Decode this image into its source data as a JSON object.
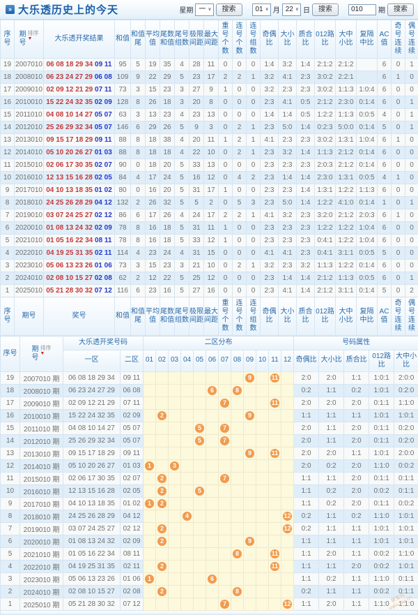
{
  "page": {
    "title": "大乐透历史上的今天",
    "title_icon": "»"
  },
  "controls": {
    "week_label": "星期",
    "week_value": "一",
    "search_label": "搜索",
    "month_value": "01",
    "month_label": "月",
    "day_value": "22",
    "day_label": "日",
    "issue_value": "010",
    "issue_label": "期"
  },
  "sort_label": "排序",
  "sort_arrow": "▼",
  "table1": {
    "columns": [
      "序号",
      "期\n号",
      "大乐透开奖结果",
      "和值",
      "和值\n尾",
      "平均\n值",
      "尾数\n和值",
      "尾号\n组数",
      "极限\n间距",
      "最大\n间距",
      "重号\n个数",
      "连号\n个数",
      "连号\n组数",
      "奇偶\n比",
      "大小\n比",
      "质合\n比",
      "012路\n比",
      "大中\n小比",
      "复隔\n中比",
      "AC值",
      "奇号\n连续",
      "偶号\n连续"
    ],
    "footer_columns": [
      "序号",
      "期号",
      "奖号",
      "和值",
      "和值\n尾",
      "平均\n值",
      "尾数\n和值",
      "尾号\n组数",
      "极限\n间距",
      "最大\n间距",
      "重号\n个数",
      "连号\n个数",
      "连号\n组数",
      "奇偶\n比",
      "大小\n比",
      "质合\n比",
      "012路\n比",
      "大中\n小比",
      "复隔\n中比",
      "AC值",
      "奇号\n连续",
      "偶号\n连续"
    ],
    "rows": [
      {
        "seq": "19",
        "period": "2007010",
        "front": "06 08 18 29 34",
        "back": "09 11",
        "values": [
          "95",
          "5",
          "19",
          "35",
          "4",
          "28",
          "11",
          "0",
          "0",
          "0",
          "1:4",
          "3:2",
          "1:4",
          "2:1:2",
          "2:1:2",
          "",
          "6",
          "0",
          "1"
        ]
      },
      {
        "seq": "18",
        "period": "2008010",
        "front": "06 23 24 27 29",
        "back": "06 08",
        "values": [
          "109",
          "9",
          "22",
          "29",
          "5",
          "23",
          "17",
          "2",
          "2",
          "1",
          "3:2",
          "4:1",
          "2:3",
          "3:0:2",
          "2:2:1",
          "",
          "6",
          "1",
          "0"
        ]
      },
      {
        "seq": "17",
        "period": "2009010",
        "front": "02 09 12 21 29",
        "back": "07 11",
        "values": [
          "73",
          "3",
          "15",
          "23",
          "3",
          "27",
          "9",
          "1",
          "0",
          "0",
          "3:2",
          "2:3",
          "2:3",
          "3:0:2",
          "1:1:3",
          "1:0:4",
          "6",
          "0",
          "0"
        ]
      },
      {
        "seq": "16",
        "period": "2010010",
        "front": "15 22 24 32 35",
        "back": "02 09",
        "values": [
          "128",
          "8",
          "26",
          "18",
          "3",
          "20",
          "8",
          "0",
          "0",
          "0",
          "2:3",
          "4:1",
          "0:5",
          "2:1:2",
          "2:3:0",
          "0:1:4",
          "6",
          "0",
          "1"
        ]
      },
      {
        "seq": "15",
        "period": "2011010",
        "front": "04 08 10 14 27",
        "back": "05 07",
        "values": [
          "63",
          "3",
          "13",
          "23",
          "4",
          "23",
          "13",
          "0",
          "0",
          "0",
          "1:4",
          "1:4",
          "0:5",
          "1:2:2",
          "1:1:3",
          "0:0:5",
          "4",
          "0",
          "1"
        ]
      },
      {
        "seq": "14",
        "period": "2012010",
        "front": "25 26 29 32 34",
        "back": "05 07",
        "values": [
          "146",
          "6",
          "29",
          "26",
          "5",
          "9",
          "3",
          "0",
          "2",
          "1",
          "2:3",
          "5:0",
          "1:4",
          "0:2:3",
          "5:0:0",
          "0:1:4",
          "5",
          "0",
          "1"
        ]
      },
      {
        "seq": "13",
        "period": "2013010",
        "front": "09 15 17 18 29",
        "back": "09 11",
        "values": [
          "88",
          "8",
          "18",
          "38",
          "4",
          "20",
          "11",
          "1",
          "2",
          "1",
          "4:1",
          "2:3",
          "2:3",
          "3:0:2",
          "1:3:1",
          "1:0:4",
          "6",
          "1",
          "0"
        ]
      },
      {
        "seq": "12",
        "period": "2014010",
        "front": "05 10 20 26 27",
        "back": "01 03",
        "values": [
          "88",
          "8",
          "18",
          "18",
          "4",
          "22",
          "10",
          "0",
          "2",
          "1",
          "2:3",
          "3:2",
          "1:4",
          "1:1:3",
          "2:1:2",
          "0:1:4",
          "6",
          "0",
          "0"
        ]
      },
      {
        "seq": "11",
        "period": "2015010",
        "front": "02 06 17 30 35",
        "back": "02 07",
        "values": [
          "90",
          "0",
          "18",
          "20",
          "5",
          "33",
          "13",
          "0",
          "0",
          "0",
          "2:3",
          "2:3",
          "2:3",
          "2:0:3",
          "2:1:2",
          "0:1:4",
          "6",
          "0",
          "0"
        ]
      },
      {
        "seq": "10",
        "period": "2016010",
        "front": "12 13 15 16 28",
        "back": "02 05",
        "values": [
          "84",
          "4",
          "17",
          "24",
          "5",
          "16",
          "12",
          "0",
          "4",
          "2",
          "2:3",
          "1:4",
          "1:4",
          "2:3:0",
          "1:3:1",
          "0:0:5",
          "4",
          "1",
          "0"
        ]
      },
      {
        "seq": "9",
        "period": "2017010",
        "front": "04 10 13 18 35",
        "back": "01 02",
        "values": [
          "80",
          "0",
          "16",
          "20",
          "5",
          "31",
          "17",
          "1",
          "0",
          "0",
          "2:3",
          "2:3",
          "1:4",
          "1:3:1",
          "1:2:2",
          "1:1:3",
          "6",
          "0",
          "0"
        ]
      },
      {
        "seq": "8",
        "period": "2018010",
        "front": "24 25 26 28 29",
        "back": "04 12",
        "values": [
          "132",
          "2",
          "26",
          "32",
          "5",
          "5",
          "2",
          "0",
          "5",
          "3",
          "2:3",
          "5:0",
          "1:4",
          "1:2:2",
          "4:1:0",
          "0:1:4",
          "1",
          "0",
          "1"
        ]
      },
      {
        "seq": "7",
        "period": "2019010",
        "front": "03 07 24 25 27",
        "back": "02 12",
        "values": [
          "86",
          "6",
          "17",
          "26",
          "4",
          "24",
          "17",
          "2",
          "2",
          "1",
          "4:1",
          "3:2",
          "2:3",
          "3:2:0",
          "2:1:2",
          "2:0:3",
          "6",
          "1",
          "0"
        ]
      },
      {
        "seq": "6",
        "period": "2020010",
        "front": "01 08 13 24 32",
        "back": "02 09",
        "values": [
          "78",
          "8",
          "16",
          "18",
          "5",
          "31",
          "11",
          "1",
          "0",
          "0",
          "2:3",
          "2:3",
          "2:3",
          "1:2:2",
          "1:2:2",
          "1:0:4",
          "6",
          "0",
          "0"
        ]
      },
      {
        "seq": "5",
        "period": "2021010",
        "front": "01 05 16 22 34",
        "back": "08 11",
        "values": [
          "78",
          "8",
          "16",
          "18",
          "5",
          "33",
          "12",
          "1",
          "0",
          "0",
          "2:3",
          "2:3",
          "2:3",
          "0:4:1",
          "1:2:2",
          "1:0:4",
          "6",
          "0",
          "0"
        ]
      },
      {
        "seq": "4",
        "period": "2022010",
        "front": "04 19 25 31 35",
        "back": "02 11",
        "values": [
          "114",
          "4",
          "23",
          "24",
          "4",
          "31",
          "15",
          "0",
          "0",
          "0",
          "4:1",
          "4:1",
          "2:3",
          "0:4:1",
          "3:1:1",
          "0:0:5",
          "5",
          "0",
          "0"
        ]
      },
      {
        "seq": "3",
        "period": "2023010",
        "front": "05 06 13 23 26",
        "back": "01 06",
        "values": [
          "73",
          "3",
          "15",
          "23",
          "3",
          "21",
          "10",
          "0",
          "2",
          "1",
          "3:2",
          "2:3",
          "3:2",
          "1:1:3",
          "1:2:2",
          "0:1:4",
          "6",
          "0",
          "0"
        ]
      },
      {
        "seq": "2",
        "period": "2024010",
        "front": "02 08 10 15 27",
        "back": "02 08",
        "values": [
          "62",
          "2",
          "12",
          "22",
          "5",
          "25",
          "12",
          "0",
          "0",
          "0",
          "2:3",
          "1:4",
          "1:4",
          "2:1:2",
          "1:1:3",
          "0:0:5",
          "6",
          "0",
          "1"
        ]
      },
      {
        "seq": "1",
        "period": "2025010",
        "front": "05 21 28 30 32",
        "back": "07 12",
        "values": [
          "116",
          "6",
          "23",
          "16",
          "5",
          "27",
          "16",
          "0",
          "0",
          "0",
          "2:3",
          "4:1",
          "1:4",
          "2:1:2",
          "3:1:1",
          "0:1:4",
          "5",
          "0",
          "2"
        ]
      }
    ]
  },
  "table2": {
    "group_headers": {
      "seq": "序号",
      "period": "期\n号",
      "numbers": "大乐透开奖号码",
      "distribution": "二区分布",
      "attributes": "号码属性"
    },
    "sub_headers": {
      "zone1": "一区",
      "zone2": "二区",
      "cells": [
        "01",
        "02",
        "03",
        "04",
        "05",
        "06",
        "07",
        "08",
        "09",
        "10",
        "11",
        "12"
      ],
      "ratios": [
        "奇偶比",
        "大小比",
        "质合比",
        "012路比",
        "大中小比"
      ]
    },
    "rows": [
      {
        "seq": "19",
        "period": "2007010 期",
        "zone1": "06 08 18 29 34",
        "zone2": "09 11",
        "balls": [
          9,
          11
        ],
        "ratios": [
          "2:0",
          "2:0",
          "1:1",
          "1:0:1",
          "2:0:0"
        ]
      },
      {
        "seq": "18",
        "period": "2008010 期",
        "zone1": "06 23 24 27 29",
        "zone2": "06 08",
        "balls": [
          6,
          8
        ],
        "ratios": [
          "0:2",
          "1:1",
          "0:2",
          "1:0:1",
          "0:2:0"
        ]
      },
      {
        "seq": "17",
        "period": "2009010 期",
        "zone1": "02 09 12 21 29",
        "zone2": "07 11",
        "balls": [
          7,
          11
        ],
        "ratios": [
          "2:0",
          "2:0",
          "2:0",
          "0:1:1",
          "1:1:0"
        ]
      },
      {
        "seq": "16",
        "period": "2010010 期",
        "zone1": "15 22 24 32 35",
        "zone2": "02 09",
        "balls": [
          2,
          9
        ],
        "ratios": [
          "1:1",
          "1:1",
          "1:1",
          "1:0:1",
          "1:0:1"
        ]
      },
      {
        "seq": "15",
        "period": "2011010 期",
        "zone1": "04 08 10 14 27",
        "zone2": "05 07",
        "balls": [
          5,
          7
        ],
        "ratios": [
          "2:0",
          "1:1",
          "2:0",
          "0:1:1",
          "0:2:0"
        ]
      },
      {
        "seq": "14",
        "period": "2012010 期",
        "zone1": "25 26 29 32 34",
        "zone2": "05 07",
        "balls": [
          5,
          7
        ],
        "ratios": [
          "2:0",
          "1:1",
          "2:0",
          "0:1:1",
          "0:2:0"
        ]
      },
      {
        "seq": "13",
        "period": "2013010 期",
        "zone1": "09 15 17 18 29",
        "zone2": "09 11",
        "balls": [
          9,
          11
        ],
        "ratios": [
          "2:0",
          "2:0",
          "1:1",
          "1:0:1",
          "2:0:0"
        ]
      },
      {
        "seq": "12",
        "period": "2014010 期",
        "zone1": "05 10 20 26 27",
        "zone2": "01 03",
        "balls": [
          1,
          3
        ],
        "ratios": [
          "2:0",
          "0:2",
          "2:0",
          "1:1:0",
          "0:0:2"
        ]
      },
      {
        "seq": "11",
        "period": "2015010 期",
        "zone1": "02 06 17 30 35",
        "zone2": "02 07",
        "balls": [
          2,
          7
        ],
        "ratios": [
          "1:1",
          "1:1",
          "2:0",
          "0:1:1",
          "0:1:1"
        ]
      },
      {
        "seq": "10",
        "period": "2016010 期",
        "zone1": "12 13 15 16 28",
        "zone2": "02 05",
        "balls": [
          2,
          5
        ],
        "ratios": [
          "1:1",
          "0:2",
          "2:0",
          "0:0:2",
          "0:1:1"
        ]
      },
      {
        "seq": "9",
        "period": "2017010 期",
        "zone1": "04 10 13 18 35",
        "zone2": "01 02",
        "balls": [
          1,
          2
        ],
        "ratios": [
          "1:1",
          "0:2",
          "2:0",
          "0:1:1",
          "0:0:2"
        ]
      },
      {
        "seq": "8",
        "period": "2018010 期",
        "zone1": "24 25 26 28 29",
        "zone2": "04 12",
        "balls": [
          4,
          12
        ],
        "ratios": [
          "0:2",
          "1:1",
          "0:2",
          "1:1:0",
          "1:0:1"
        ]
      },
      {
        "seq": "7",
        "period": "2019010 期",
        "zone1": "03 07 24 25 27",
        "zone2": "02 12",
        "balls": [
          2,
          12
        ],
        "ratios": [
          "0:2",
          "1:1",
          "1:1",
          "1:0:1",
          "1:0:1"
        ]
      },
      {
        "seq": "6",
        "period": "2020010 期",
        "zone1": "01 08 13 24 32",
        "zone2": "02 09",
        "balls": [
          2,
          9
        ],
        "ratios": [
          "1:1",
          "1:1",
          "1:1",
          "1:0:1",
          "1:0:1"
        ]
      },
      {
        "seq": "5",
        "period": "2021010 期",
        "zone1": "01 05 16 22 34",
        "zone2": "08 11",
        "balls": [
          8,
          11
        ],
        "ratios": [
          "1:1",
          "2:0",
          "1:1",
          "0:0:2",
          "1:1:0"
        ]
      },
      {
        "seq": "4",
        "period": "2022010 期",
        "zone1": "04 19 25 31 35",
        "zone2": "02 11",
        "balls": [
          2,
          11
        ],
        "ratios": [
          "1:1",
          "1:1",
          "2:0",
          "0:0:2",
          "1:0:1"
        ]
      },
      {
        "seq": "3",
        "period": "2023010 期",
        "zone1": "05 06 13 23 26",
        "zone2": "01 06",
        "balls": [
          1,
          6
        ],
        "ratios": [
          "1:1",
          "0:2",
          "1:1",
          "1:1:0",
          "0:1:1"
        ]
      },
      {
        "seq": "2",
        "period": "2024010 期",
        "zone1": "02 08 10 15 27",
        "zone2": "02 08",
        "balls": [
          2,
          8
        ],
        "ratios": [
          "0:2",
          "1:1",
          "1:1",
          "0:0:2",
          "0:1:1"
        ]
      },
      {
        "seq": "1",
        "period": "2025010 期",
        "zone1": "05 21 28 30 32",
        "zone2": "07 12",
        "balls": [
          7,
          12
        ],
        "ratios": [
          "1:1",
          "2:0",
          "1:1",
          "1:1:0",
          "1:1:0"
        ]
      }
    ]
  },
  "watermark": {
    "line1": "新宝贝",
    "line2": "www.xxx.cn"
  }
}
